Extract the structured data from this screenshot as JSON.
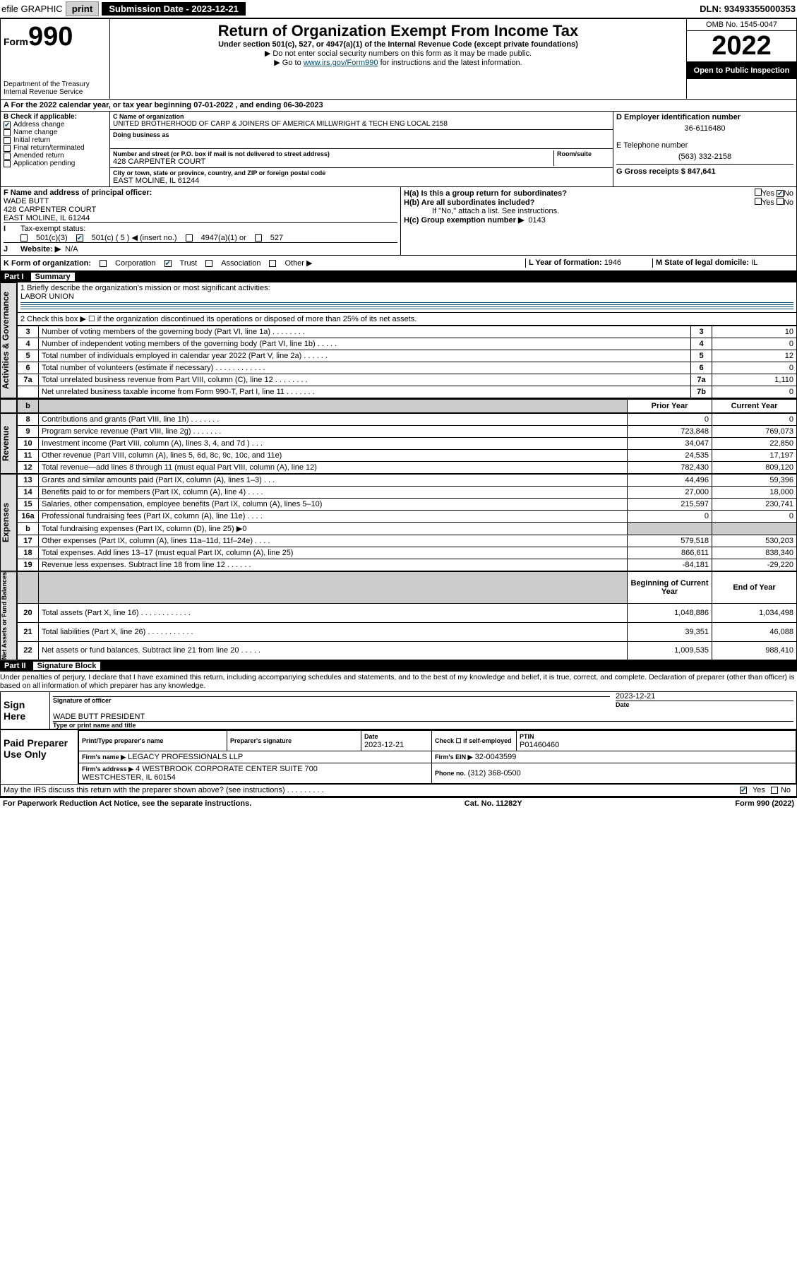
{
  "topbar": {
    "efile": "efile GRAPHIC",
    "print": "print",
    "submission_label": "Submission Date - 2023-12-21",
    "dln": "DLN: 93493355000353"
  },
  "header": {
    "form_small": "Form",
    "form_big": "990",
    "dept1": "Department of the Treasury",
    "dept2": "Internal Revenue Service",
    "title": "Return of Organization Exempt From Income Tax",
    "subtitle": "Under section 501(c), 527, or 4947(a)(1) of the Internal Revenue Code (except private foundations)",
    "note1": "▶ Do not enter social security numbers on this form as it may be made public.",
    "note2_pre": "▶ Go to ",
    "note2_link": "www.irs.gov/Form990",
    "note2_post": " for instructions and the latest information.",
    "omb": "OMB No. 1545-0047",
    "year": "2022",
    "open_pub": "Open to Public Inspection"
  },
  "block_a": {
    "tax_year": "A For the 2022 calendar year, or tax year beginning 07-01-2022   , and ending 06-30-2023",
    "b_label": "B Check if applicable:",
    "b_items": [
      "Address change",
      "Name change",
      "Initial return",
      "Final return/terminated",
      "Amended return",
      "Application pending"
    ],
    "b_checked": [
      true,
      false,
      false,
      false,
      false,
      false
    ],
    "c_name_lbl": "C Name of organization",
    "c_name": "UNITED BROTHERHOOD OF CARP & JOINERS OF AMERICA MILLWRIGHT & TECH ENG LOCAL 2158",
    "dba_lbl": "Doing business as",
    "addr_lbl": "Number and street (or P.O. box if mail is not delivered to street address)",
    "addr": "428 CARPENTER COURT",
    "room_lbl": "Room/suite",
    "city_lbl": "City or town, state or province, country, and ZIP or foreign postal code",
    "city": "EAST MOLINE, IL  61244",
    "d_lbl": "D Employer identification number",
    "d_val": "36-6116480",
    "e_lbl": "E Telephone number",
    "e_val": "(563) 332-2158",
    "g_lbl": "G Gross receipts $",
    "g_val": "847,641"
  },
  "block_f": {
    "f_lbl": "F  Name and address of principal officer:",
    "f_name": "WADE BUTT",
    "f_addr1": "428 CARPENTER COURT",
    "f_addr2": "EAST MOLINE, IL  61244",
    "ha_lbl": "H(a)  Is this a group return for subordinates?",
    "hb_lbl": "H(b)  Are all subordinates included?",
    "h_note": "If \"No,\" attach a list. See instructions.",
    "hc_lbl": "H(c)  Group exemption number ▶",
    "hc_val": "0143",
    "tax_status_lbl": "Tax-exempt status:",
    "ts_501c3": "501(c)(3)",
    "ts_501c": "501(c) ( 5 ) ◀ (insert no.)",
    "ts_4947": "4947(a)(1) or",
    "ts_527": "527",
    "website_lbl": "Website: ▶",
    "website_val": "N/A"
  },
  "block_k": {
    "k_lbl": "K Form of organization:",
    "k_corp": "Corporation",
    "k_trust": "Trust",
    "k_assoc": "Association",
    "k_other": "Other ▶",
    "l_lbl": "L Year of formation:",
    "l_val": "1946",
    "m_lbl": "M State of legal domicile:",
    "m_val": "IL"
  },
  "part1": {
    "title_part": "Part I",
    "title": "Summary",
    "line1_lbl": "1  Briefly describe the organization's mission or most significant activities:",
    "line1_val": "LABOR UNION",
    "line2": "2  Check this box ▶ ☐  if the organization discontinued its operations or disposed of more than 25% of its net assets.",
    "gov_rows": [
      {
        "n": "3",
        "d": "Number of voting members of the governing body (Part VI, line 1a)  .   .   .   .   .   .   .   .",
        "r": "3",
        "v": "10"
      },
      {
        "n": "4",
        "d": "Number of independent voting members of the governing body (Part VI, line 1b)  .   .   .   .   .",
        "r": "4",
        "v": "0"
      },
      {
        "n": "5",
        "d": "Total number of individuals employed in calendar year 2022 (Part V, line 2a)  .   .   .   .   .   .",
        "r": "5",
        "v": "12"
      },
      {
        "n": "6",
        "d": "Total number of volunteers (estimate if necessary)  .   .   .   .   .   .   .   .   .   .   .   .",
        "r": "6",
        "v": "0"
      },
      {
        "n": "7a",
        "d": "Total unrelated business revenue from Part VIII, column (C), line 12  .   .   .   .   .   .   .   .",
        "r": "7a",
        "v": "1,110"
      },
      {
        "n": "",
        "d": "Net unrelated business taxable income from Form 990-T, Part I, line 11  .   .   .   .   .   .   .",
        "r": "7b",
        "v": "0"
      }
    ],
    "col_prior": "Prior Year",
    "col_curr": "Current Year",
    "rev_rows": [
      {
        "n": "8",
        "d": "Contributions and grants (Part VIII, line 1h)  .   .   .   .   .   .   .",
        "p": "0",
        "c": "0"
      },
      {
        "n": "9",
        "d": "Program service revenue (Part VIII, line 2g)  .   .   .   .   .   .   .",
        "p": "723,848",
        "c": "769,073"
      },
      {
        "n": "10",
        "d": "Investment income (Part VIII, column (A), lines 3, 4, and 7d )  .   .   .",
        "p": "34,047",
        "c": "22,850"
      },
      {
        "n": "11",
        "d": "Other revenue (Part VIII, column (A), lines 5, 6d, 8c, 9c, 10c, and 11e)",
        "p": "24,535",
        "c": "17,197"
      },
      {
        "n": "12",
        "d": "Total revenue—add lines 8 through 11 (must equal Part VIII, column (A), line 12)",
        "p": "782,430",
        "c": "809,120"
      }
    ],
    "exp_rows": [
      {
        "n": "13",
        "d": "Grants and similar amounts paid (Part IX, column (A), lines 1–3)  .   .   .",
        "p": "44,496",
        "c": "59,396"
      },
      {
        "n": "14",
        "d": "Benefits paid to or for members (Part IX, column (A), line 4)  .   .   .   .",
        "p": "27,000",
        "c": "18,000"
      },
      {
        "n": "15",
        "d": "Salaries, other compensation, employee benefits (Part IX, column (A), lines 5–10)",
        "p": "215,597",
        "c": "230,741"
      },
      {
        "n": "16a",
        "d": "Professional fundraising fees (Part IX, column (A), line 11e)  .   .   .   .",
        "p": "0",
        "c": "0"
      },
      {
        "n": "b",
        "d": "Total fundraising expenses (Part IX, column (D), line 25) ▶0",
        "p": "",
        "c": "",
        "grey": true
      },
      {
        "n": "17",
        "d": "Other expenses (Part IX, column (A), lines 11a–11d, 11f–24e)  .   .   .   .",
        "p": "579,518",
        "c": "530,203"
      },
      {
        "n": "18",
        "d": "Total expenses. Add lines 13–17 (must equal Part IX, column (A), line 25)",
        "p": "866,611",
        "c": "838,340"
      },
      {
        "n": "19",
        "d": "Revenue less expenses. Subtract line 18 from line 12  .   .   .   .   .   .",
        "p": "-84,181",
        "c": "-29,220"
      }
    ],
    "na_head_p": "Beginning of Current Year",
    "na_head_c": "End of Year",
    "na_rows": [
      {
        "n": "20",
        "d": "Total assets (Part X, line 16)  .   .   .   .   .   .   .   .   .   .   .   .",
        "p": "1,048,886",
        "c": "1,034,498"
      },
      {
        "n": "21",
        "d": "Total liabilities (Part X, line 26)  .   .   .   .   .   .   .   .   .   .   .",
        "p": "39,351",
        "c": "46,088"
      },
      {
        "n": "22",
        "d": "Net assets or fund balances. Subtract line 21 from line 20  .   .   .   .   .",
        "p": "1,009,535",
        "c": "988,410"
      }
    ],
    "vert": {
      "gov": "Activities & Governance",
      "rev": "Revenue",
      "exp": "Expenses",
      "na": "Net Assets or Fund Balances"
    }
  },
  "part2": {
    "title_part": "Part II",
    "title": "Signature Block",
    "penalties": "Under penalties of perjury, I declare that I have examined this return, including accompanying schedules and statements, and to the best of my knowledge and belief, it is true, correct, and complete. Declaration of preparer (other than officer) is based on all information of which preparer has any knowledge.",
    "sign_here": "Sign Here",
    "sig_officer_lbl": "Signature of officer",
    "sig_date": "2023-12-21",
    "date_lbl": "Date",
    "sig_name": "WADE BUTT  PRESIDENT",
    "sig_name_lbl": "Type or print name and title",
    "paid_lbl": "Paid Preparer Use Only",
    "prep_name_lbl": "Print/Type preparer's name",
    "prep_sig_lbl": "Preparer's signature",
    "prep_date_lbl": "Date",
    "prep_date": "2023-12-21",
    "prep_check_lbl": "Check ☐ if self-employed",
    "ptin_lbl": "PTIN",
    "ptin": "P01460460",
    "firm_name_lbl": "Firm's name    ▶",
    "firm_name": "LEGACY PROFESSIONALS LLP",
    "firm_ein_lbl": "Firm's EIN ▶",
    "firm_ein": "32-0043599",
    "firm_addr_lbl": "Firm's address ▶",
    "firm_addr": "4 WESTBROOK CORPORATE CENTER SUITE 700\nWESTCHESTER, IL  60154",
    "phone_lbl": "Phone no.",
    "phone": "(312) 368-0500",
    "discuss": "May the IRS discuss this return with the preparer shown above? (see instructions)  .   .   .   .   .   .   .   .   .",
    "yes": "Yes",
    "no": "No"
  },
  "footer": {
    "pra": "For Paperwork Reduction Act Notice, see the separate instructions.",
    "cat": "Cat. No. 11282Y",
    "form": "Form 990 (2022)"
  },
  "colors": {
    "link": "#004b6e"
  }
}
